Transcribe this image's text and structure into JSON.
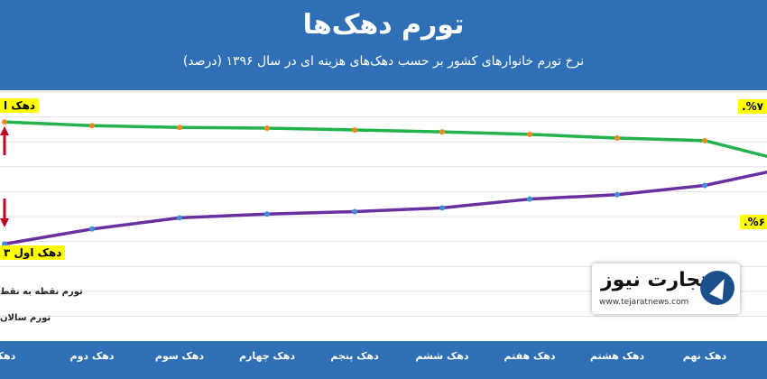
{
  "header": {
    "title": "تورم دهک‌ها",
    "subtitle": "نرخ تورم خانوارهای کشور بر حسب دهک‌های هزینه ای در سال ۱۳۹۶ (درصد)"
  },
  "colors": {
    "header_bg": "#2f6fb6",
    "series_top": "#22b24c",
    "series_bottom": "#6a2fa0",
    "marker_top": "#f08a24",
    "marker_bottom": "#3f8fd8",
    "callout_bg": "#ffff00",
    "arrow": "#c00020"
  },
  "callouts": {
    "top_left": "دهک ا",
    "top_right": "%۷.",
    "bottom_left": "دهک اول ۳",
    "bottom_right": "%۶."
  },
  "legend": {
    "item1": "تورم نقطه به نقط",
    "item2": "تورم سالان"
  },
  "logo": {
    "name": "تجارت نیوز",
    "url": "www.tejaratnews.com"
  },
  "chart_data": {
    "type": "line",
    "categories": [
      "دهک",
      "دهک دوم",
      "دهک سوم",
      "دهک چهارم",
      "دهک پنجم",
      "دهک ششم",
      "دهک هفتم",
      "دهک هشتم",
      "دهک نهم",
      ""
    ],
    "ylim": [
      0,
      100
    ],
    "grid": true,
    "series": [
      {
        "name": "",
        "values": [
          88,
          86.5,
          85.8,
          85.5,
          84.8,
          84,
          83,
          81.5,
          80.5,
          74
        ]
      },
      {
        "name": "",
        "values": [
          39,
          45,
          49.5,
          51,
          52,
          53.5,
          57,
          58.8,
          62.5,
          68
        ]
      }
    ]
  }
}
